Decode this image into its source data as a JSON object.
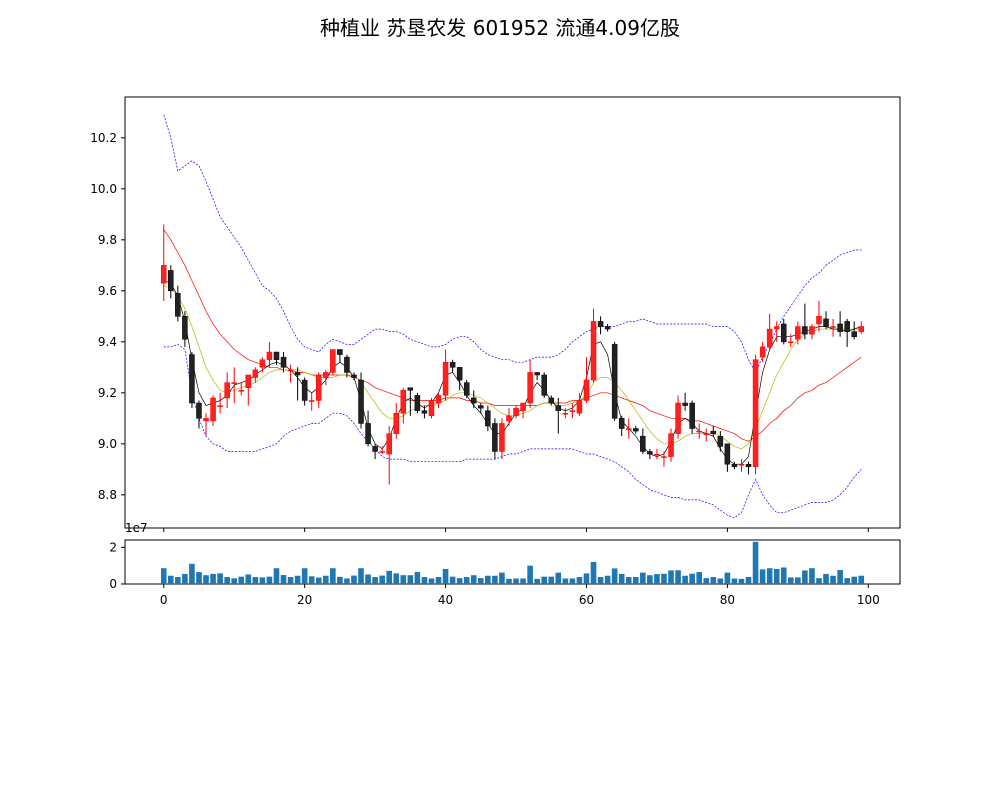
{
  "chart_data": [
    {
      "type": "candlestick",
      "title": "种植业 苏垦农发 601952 流通4.09亿股",
      "x": [
        0,
        1,
        2,
        3,
        4,
        5,
        6,
        7,
        8,
        9,
        10,
        11,
        12,
        13,
        14,
        15,
        16,
        17,
        18,
        19,
        20,
        21,
        22,
        23,
        24,
        25,
        26,
        27,
        28,
        29,
        30,
        31,
        32,
        33,
        34,
        35,
        36,
        37,
        38,
        39,
        40,
        41,
        42,
        43,
        44,
        45,
        46,
        47,
        48,
        49,
        50,
        51,
        52,
        53,
        54,
        55,
        56,
        57,
        58,
        59,
        60,
        61,
        62,
        63,
        64,
        65,
        66,
        67,
        68,
        69,
        70,
        71,
        72,
        73,
        74,
        75,
        76,
        77,
        78,
        79,
        80,
        81,
        82,
        83,
        84,
        85,
        86,
        87,
        88,
        89,
        90,
        91,
        92,
        93,
        94,
        95,
        96,
        97,
        98,
        99
      ],
      "open": [
        9.63,
        9.68,
        9.59,
        9.5,
        9.35,
        9.16,
        9.09,
        9.09,
        9.15,
        9.18,
        9.24,
        9.21,
        9.22,
        9.26,
        9.3,
        9.33,
        9.36,
        9.34,
        9.29,
        9.28,
        9.25,
        9.17,
        9.17,
        9.26,
        9.28,
        9.37,
        9.34,
        9.27,
        9.25,
        9.08,
        8.99,
        8.97,
        8.96,
        9.04,
        9.12,
        9.22,
        9.19,
        9.13,
        9.11,
        9.16,
        9.19,
        9.32,
        9.3,
        9.24,
        9.18,
        9.15,
        9.13,
        9.08,
        8.97,
        9.09,
        9.11,
        9.13,
        9.16,
        9.28,
        9.27,
        9.18,
        9.15,
        9.12,
        9.13,
        9.12,
        9.17,
        9.25,
        9.48,
        9.46,
        9.39,
        9.1,
        9.06,
        9.06,
        9.03,
        8.97,
        8.96,
        8.95,
        8.95,
        9.04,
        9.16,
        9.16,
        9.05,
        9.04,
        9.05,
        9.03,
        9.0,
        8.92,
        8.92,
        8.92,
        8.91,
        9.34,
        9.38,
        9.45,
        9.47,
        9.4,
        9.41,
        9.46,
        9.43,
        9.47,
        9.49,
        9.46,
        9.47,
        9.48,
        9.44,
        9.44
      ],
      "close": [
        9.7,
        9.6,
        9.5,
        9.41,
        9.16,
        9.1,
        9.1,
        9.18,
        9.15,
        9.24,
        9.24,
        9.21,
        9.27,
        9.29,
        9.33,
        9.36,
        9.33,
        9.3,
        9.29,
        9.27,
        9.17,
        9.17,
        9.27,
        9.28,
        9.37,
        9.35,
        9.28,
        9.26,
        9.08,
        9.0,
        8.97,
        8.97,
        9.04,
        9.12,
        9.21,
        9.21,
        9.13,
        9.12,
        9.17,
        9.19,
        9.32,
        9.3,
        9.25,
        9.19,
        9.16,
        9.14,
        9.07,
        8.97,
        9.08,
        9.11,
        9.14,
        9.16,
        9.28,
        9.27,
        9.19,
        9.16,
        9.13,
        9.12,
        9.13,
        9.17,
        9.25,
        9.48,
        9.46,
        9.45,
        9.1,
        9.06,
        9.06,
        9.05,
        8.97,
        8.96,
        8.96,
        8.95,
        9.04,
        9.16,
        9.15,
        9.06,
        9.05,
        9.04,
        9.04,
        8.99,
        8.92,
        8.91,
        8.92,
        8.91,
        9.33,
        9.38,
        9.45,
        9.46,
        9.4,
        9.4,
        9.46,
        9.43,
        9.46,
        9.5,
        9.46,
        9.46,
        9.44,
        9.44,
        9.42,
        9.46
      ],
      "high": [
        9.86,
        9.7,
        9.62,
        9.52,
        9.36,
        9.17,
        9.12,
        9.19,
        9.2,
        9.28,
        9.3,
        9.24,
        9.27,
        9.3,
        9.34,
        9.4,
        9.36,
        9.36,
        9.31,
        9.3,
        9.26,
        9.2,
        9.28,
        9.29,
        9.37,
        9.37,
        9.35,
        9.28,
        9.28,
        9.13,
        9.0,
        8.99,
        9.07,
        9.16,
        9.22,
        9.22,
        9.2,
        9.15,
        9.18,
        9.2,
        9.37,
        9.33,
        9.3,
        9.25,
        9.21,
        9.16,
        9.15,
        9.1,
        9.1,
        9.14,
        9.15,
        9.16,
        9.33,
        9.28,
        9.28,
        9.19,
        9.18,
        9.14,
        9.16,
        9.2,
        9.34,
        9.53,
        9.5,
        9.47,
        9.4,
        9.11,
        9.1,
        9.07,
        9.06,
        8.98,
        8.98,
        8.97,
        9.06,
        9.19,
        9.2,
        9.17,
        9.08,
        9.06,
        9.07,
        9.05,
        9.0,
        8.93,
        8.94,
        8.93,
        9.35,
        9.4,
        9.51,
        9.48,
        9.49,
        9.43,
        9.48,
        9.55,
        9.47,
        9.56,
        9.52,
        9.49,
        9.52,
        9.49,
        9.48,
        9.48
      ],
      "low": [
        9.56,
        9.57,
        9.48,
        9.38,
        9.14,
        9.06,
        9.03,
        9.07,
        9.12,
        9.14,
        9.16,
        9.19,
        9.15,
        9.24,
        9.28,
        9.3,
        9.31,
        9.28,
        9.24,
        9.17,
        9.15,
        9.13,
        9.14,
        9.23,
        9.27,
        9.32,
        9.26,
        9.25,
        9.06,
        8.99,
        8.94,
        8.96,
        8.84,
        9.02,
        9.08,
        9.11,
        9.12,
        9.1,
        9.1,
        9.14,
        9.17,
        9.28,
        9.21,
        9.18,
        9.14,
        9.12,
        9.05,
        8.94,
        8.94,
        9.07,
        9.1,
        9.1,
        9.14,
        9.25,
        9.18,
        9.15,
        9.04,
        9.1,
        9.1,
        9.11,
        9.16,
        9.24,
        9.43,
        9.44,
        9.09,
        9.03,
        9.02,
        9.04,
        8.96,
        8.94,
        8.94,
        8.91,
        8.93,
        9.02,
        9.13,
        9.04,
        9.02,
        9.01,
        9.03,
        8.97,
        8.89,
        8.9,
        8.89,
        8.88,
        8.88,
        9.32,
        9.37,
        9.4,
        9.39,
        9.38,
        9.39,
        9.41,
        9.41,
        9.44,
        9.45,
        9.42,
        9.42,
        9.38,
        9.41,
        9.43
      ],
      "ma_fast": [
        9.64,
        9.63,
        9.58,
        9.48,
        9.33,
        9.2,
        9.15,
        9.16,
        9.17,
        9.19,
        9.23,
        9.24,
        9.25,
        9.27,
        9.29,
        9.31,
        9.32,
        9.31,
        9.29,
        9.26,
        9.22,
        9.2,
        9.22,
        9.25,
        9.3,
        9.32,
        9.3,
        9.26,
        9.17,
        9.06,
        9.0,
        8.98,
        9.02,
        9.1,
        9.16,
        9.18,
        9.16,
        9.14,
        9.16,
        9.2,
        9.27,
        9.28,
        9.24,
        9.19,
        9.15,
        9.12,
        9.08,
        9.04,
        9.04,
        9.08,
        9.12,
        9.14,
        9.2,
        9.24,
        9.21,
        9.17,
        9.14,
        9.13,
        9.14,
        9.17,
        9.26,
        9.39,
        9.4,
        9.35,
        9.2,
        9.09,
        9.06,
        9.03,
        8.99,
        8.96,
        8.95,
        8.96,
        9.01,
        9.08,
        9.1,
        9.08,
        9.05,
        9.04,
        9.03,
        8.98,
        8.94,
        8.92,
        8.92,
        8.95,
        9.12,
        9.28,
        9.37,
        9.42,
        9.42,
        9.42,
        9.43,
        9.44,
        9.45,
        9.46,
        9.46,
        9.45,
        9.45,
        9.44,
        9.45,
        9.46
      ],
      "ma_mid": [
        9.62,
        9.61,
        9.58,
        9.53,
        9.46,
        9.38,
        9.3,
        9.25,
        9.21,
        9.2,
        9.21,
        9.22,
        9.23,
        9.24,
        9.26,
        9.28,
        9.29,
        9.29,
        9.29,
        9.29,
        9.28,
        9.27,
        9.26,
        9.26,
        9.26,
        9.27,
        9.27,
        9.27,
        9.24,
        9.2,
        9.16,
        9.12,
        9.1,
        9.1,
        9.11,
        9.13,
        9.14,
        9.15,
        9.15,
        9.16,
        9.17,
        9.19,
        9.2,
        9.2,
        9.19,
        9.18,
        9.16,
        9.14,
        9.12,
        9.11,
        9.11,
        9.12,
        9.13,
        9.15,
        9.16,
        9.16,
        9.15,
        9.15,
        9.16,
        9.17,
        9.19,
        9.24,
        9.26,
        9.26,
        9.24,
        9.21,
        9.17,
        9.13,
        9.09,
        9.05,
        9.02,
        9.0,
        9.0,
        9.01,
        9.03,
        9.04,
        9.04,
        9.04,
        9.04,
        9.03,
        9.01,
        8.99,
        8.98,
        9.0,
        9.06,
        9.13,
        9.2,
        9.27,
        9.32,
        9.37,
        9.41,
        9.43,
        9.44,
        9.45,
        9.45,
        9.45,
        9.45,
        9.45,
        9.45,
        9.45
      ],
      "ma_slow": [
        9.84,
        9.8,
        9.75,
        9.7,
        9.64,
        9.58,
        9.52,
        9.47,
        9.43,
        9.4,
        9.37,
        9.35,
        9.33,
        9.32,
        9.31,
        9.3,
        9.3,
        9.29,
        9.29,
        9.28,
        9.28,
        9.27,
        9.27,
        9.27,
        9.27,
        9.27,
        9.27,
        9.26,
        9.25,
        9.24,
        9.22,
        9.21,
        9.2,
        9.19,
        9.18,
        9.17,
        9.17,
        9.17,
        9.17,
        9.17,
        9.18,
        9.18,
        9.18,
        9.17,
        9.17,
        9.16,
        9.16,
        9.15,
        9.15,
        9.15,
        9.15,
        9.15,
        9.15,
        9.15,
        9.16,
        9.16,
        9.16,
        9.16,
        9.17,
        9.17,
        9.18,
        9.19,
        9.2,
        9.2,
        9.19,
        9.18,
        9.17,
        9.16,
        9.15,
        9.13,
        9.12,
        9.11,
        9.1,
        9.1,
        9.1,
        9.09,
        9.09,
        9.08,
        9.07,
        9.06,
        9.05,
        9.04,
        9.02,
        9.01,
        9.03,
        9.05,
        9.08,
        9.1,
        9.13,
        9.15,
        9.18,
        9.2,
        9.21,
        9.23,
        9.24,
        9.26,
        9.28,
        9.3,
        9.32,
        9.34
      ],
      "boll_upper": [
        10.29,
        10.2,
        10.07,
        10.09,
        10.11,
        10.09,
        10.03,
        9.96,
        9.89,
        9.85,
        9.81,
        9.77,
        9.72,
        9.67,
        9.62,
        9.6,
        9.57,
        9.52,
        9.46,
        9.41,
        9.38,
        9.37,
        9.36,
        9.39,
        9.41,
        9.4,
        9.39,
        9.39,
        9.41,
        9.43,
        9.45,
        9.45,
        9.44,
        9.44,
        9.43,
        9.41,
        9.4,
        9.39,
        9.38,
        9.38,
        9.39,
        9.41,
        9.42,
        9.42,
        9.4,
        9.37,
        9.35,
        9.34,
        9.33,
        9.33,
        9.32,
        9.32,
        9.33,
        9.34,
        9.34,
        9.34,
        9.35,
        9.37,
        9.4,
        9.42,
        9.44,
        9.45,
        9.46,
        9.46,
        9.46,
        9.47,
        9.48,
        9.48,
        9.49,
        9.48,
        9.47,
        9.47,
        9.47,
        9.47,
        9.47,
        9.47,
        9.47,
        9.47,
        9.46,
        9.46,
        9.46,
        9.44,
        9.4,
        9.33,
        9.28,
        9.34,
        9.39,
        9.45,
        9.5,
        9.54,
        9.58,
        9.62,
        9.65,
        9.67,
        9.7,
        9.72,
        9.74,
        9.75,
        9.76,
        9.76
      ],
      "boll_lower": [
        9.38,
        9.38,
        9.39,
        9.37,
        9.2,
        9.1,
        9.03,
        9.0,
        8.99,
        8.97,
        8.97,
        8.97,
        8.97,
        8.97,
        8.98,
        8.99,
        9.0,
        9.03,
        9.05,
        9.06,
        9.07,
        9.08,
        9.08,
        9.1,
        9.12,
        9.12,
        9.11,
        9.08,
        9.04,
        9.01,
        8.98,
        8.95,
        8.94,
        8.94,
        8.94,
        8.93,
        8.93,
        8.93,
        8.93,
        8.93,
        8.93,
        8.93,
        8.93,
        8.94,
        8.94,
        8.94,
        8.94,
        8.94,
        8.95,
        8.96,
        8.96,
        8.97,
        8.98,
        8.98,
        8.98,
        8.98,
        8.98,
        8.98,
        8.98,
        8.97,
        8.96,
        8.96,
        8.95,
        8.94,
        8.93,
        8.91,
        8.89,
        8.86,
        8.84,
        8.82,
        8.81,
        8.8,
        8.79,
        8.79,
        8.78,
        8.78,
        8.78,
        8.77,
        8.76,
        8.74,
        8.72,
        8.71,
        8.73,
        8.8,
        8.86,
        8.8,
        8.76,
        8.73,
        8.73,
        8.74,
        8.75,
        8.76,
        8.77,
        8.77,
        8.77,
        8.78,
        8.8,
        8.83,
        8.87,
        8.9
      ],
      "ylim": [
        8.67,
        10.36
      ],
      "yticks": [
        8.8,
        9.0,
        9.2,
        9.4,
        9.6,
        9.8,
        10.0,
        10.2
      ],
      "ytick_labels": [
        "8.8",
        "9.0",
        "9.2",
        "9.4",
        "9.6",
        "9.8",
        "10.0",
        "10.2"
      ],
      "xlim": [
        -5.5,
        104.5
      ],
      "xticks": [
        0,
        20,
        40,
        60,
        80,
        100
      ],
      "grid": false,
      "colors": {
        "up": "#ff0000",
        "down": "#000000",
        "ma_fast": "#000000",
        "ma_mid": "#b8b800",
        "ma_slow": "#ff0000",
        "boll": "#0000ff"
      }
    },
    {
      "type": "bar",
      "ylabel_offset": "1e7",
      "x": [
        0,
        1,
        2,
        3,
        4,
        5,
        6,
        7,
        8,
        9,
        10,
        11,
        12,
        13,
        14,
        15,
        16,
        17,
        18,
        19,
        20,
        21,
        22,
        23,
        24,
        25,
        26,
        27,
        28,
        29,
        30,
        31,
        32,
        33,
        34,
        35,
        36,
        37,
        38,
        39,
        40,
        41,
        42,
        43,
        44,
        45,
        46,
        47,
        48,
        49,
        50,
        51,
        52,
        53,
        54,
        55,
        56,
        57,
        58,
        59,
        60,
        61,
        62,
        63,
        64,
        65,
        66,
        67,
        68,
        69,
        70,
        71,
        72,
        73,
        74,
        75,
        76,
        77,
        78,
        79,
        80,
        81,
        82,
        83,
        84,
        85,
        86,
        87,
        88,
        89,
        90,
        91,
        92,
        93,
        94,
        95,
        96,
        97,
        98,
        99
      ],
      "values": [
        0.86,
        0.45,
        0.38,
        0.55,
        1.1,
        0.65,
        0.48,
        0.55,
        0.58,
        0.38,
        0.31,
        0.4,
        0.52,
        0.38,
        0.36,
        0.4,
        0.86,
        0.49,
        0.38,
        0.45,
        0.86,
        0.42,
        0.35,
        0.45,
        0.86,
        0.39,
        0.3,
        0.46,
        0.86,
        0.52,
        0.38,
        0.46,
        0.72,
        0.58,
        0.48,
        0.48,
        0.65,
        0.38,
        0.3,
        0.38,
        0.82,
        0.4,
        0.32,
        0.38,
        0.48,
        0.32,
        0.45,
        0.45,
        0.62,
        0.28,
        0.3,
        0.3,
        1.0,
        0.28,
        0.4,
        0.4,
        0.62,
        0.3,
        0.3,
        0.38,
        0.58,
        1.2,
        0.38,
        0.45,
        0.85,
        0.55,
        0.38,
        0.38,
        0.62,
        0.48,
        0.54,
        0.56,
        0.74,
        0.75,
        0.45,
        0.56,
        0.65,
        0.32,
        0.38,
        0.3,
        0.62,
        0.3,
        0.28,
        0.38,
        2.3,
        0.8,
        0.86,
        0.82,
        0.9,
        0.36,
        0.36,
        0.74,
        0.86,
        0.32,
        0.55,
        0.45,
        0.76,
        0.32,
        0.4,
        0.45
      ],
      "ylim": [
        0,
        2.4
      ],
      "yticks": [
        0,
        2
      ],
      "ytick_labels": [
        "0",
        "2"
      ],
      "xticks": [
        0,
        20,
        40,
        60,
        80,
        100
      ],
      "xtick_labels": [
        "0",
        "20",
        "40",
        "60",
        "80",
        "100"
      ],
      "color": "#1f77b4"
    }
  ]
}
